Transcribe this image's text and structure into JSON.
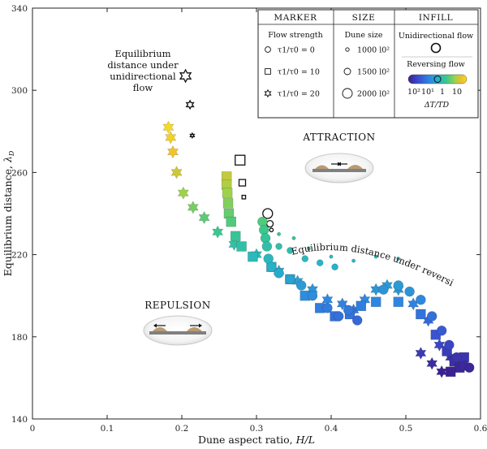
{
  "chart_data": {
    "type": "scatter",
    "xlabel": "Dune aspect ratio, H/L",
    "ylabel": "Equilibrium distance,  λ_D",
    "xlim": [
      0,
      0.6
    ],
    "ylim": [
      140,
      340
    ],
    "xticks": [
      "0",
      "0.1",
      "0.2",
      "0.3",
      "0.4",
      "0.5",
      "0.6"
    ],
    "yticks": [
      "140",
      "180",
      "220",
      "260",
      "300",
      "340"
    ],
    "grid": false,
    "legend_position": "top-right",
    "annotations": {
      "unidirectional": [
        "Equilibrium",
        "distance under",
        "unidirectional",
        "flow"
      ],
      "reversing": "Equilibrium distance under reversing flows",
      "attraction": "ATTRACTION",
      "repulsion": "REPULSION"
    },
    "legend": {
      "col_headers": [
        "MARKER",
        "SIZE",
        "INFILL"
      ],
      "marker_title": "Flow strength",
      "marker_items": [
        {
          "shape": "circle",
          "label": "τ1/τ0 = 0"
        },
        {
          "shape": "square",
          "label": "τ1/τ0 = 10"
        },
        {
          "shape": "star",
          "label": "τ1/τ0 = 20"
        }
      ],
      "size_title": "Dune size",
      "size_items": [
        {
          "label": "1000 l0²",
          "r": 2.2
        },
        {
          "label": "1500 l0²",
          "r": 4
        },
        {
          "label": "2000 l0²",
          "r": 6
        }
      ],
      "infill_uni": "Unidirectional flow",
      "infill_rev": "Reversing flow",
      "colorbar_ticks": [
        "10²",
        "10¹",
        "1",
        "10"
      ],
      "colorbar_label": "ΔT/TD",
      "colorbar_colors": [
        "#3b1e8f",
        "#3a4fd0",
        "#2f86e0",
        "#27b4c8",
        "#3cc88a",
        "#9dd24a",
        "#f0c02c",
        "#f5e020"
      ]
    },
    "series": [
      {
        "marker": "star",
        "infill": "unidirectional",
        "points": [
          [
            0.205,
            307,
            2000
          ],
          [
            0.211,
            293,
            1500
          ],
          [
            0.214,
            278,
            1000
          ]
        ]
      },
      {
        "marker": "square",
        "infill": "unidirectional",
        "points": [
          [
            0.278,
            266,
            2000
          ],
          [
            0.281,
            255,
            1500
          ],
          [
            0.283,
            248,
            1000
          ]
        ]
      },
      {
        "marker": "circle",
        "infill": "unidirectional",
        "points": [
          [
            0.315,
            240,
            2000
          ],
          [
            0.318,
            235,
            1500
          ],
          [
            0.32,
            232,
            1000
          ]
        ]
      },
      {
        "marker": "star",
        "infill": "reversing",
        "points": [
          [
            0.182,
            282,
            2000
          ],
          [
            0.185,
            277,
            2000
          ],
          [
            0.188,
            270,
            2000
          ],
          [
            0.193,
            260,
            2000
          ],
          [
            0.202,
            250,
            2000
          ],
          [
            0.215,
            243,
            2000
          ],
          [
            0.23,
            238,
            2000
          ],
          [
            0.248,
            231,
            2000
          ],
          [
            0.27,
            225,
            2000
          ],
          [
            0.3,
            220,
            2000
          ],
          [
            0.33,
            212,
            2000
          ],
          [
            0.355,
            207,
            2000
          ],
          [
            0.375,
            203,
            2000
          ],
          [
            0.395,
            198,
            2000
          ],
          [
            0.415,
            196,
            2000
          ],
          [
            0.43,
            193,
            2000
          ],
          [
            0.445,
            198,
            2000
          ],
          [
            0.46,
            203,
            2000
          ],
          [
            0.475,
            205,
            2000
          ],
          [
            0.49,
            203,
            2000
          ],
          [
            0.51,
            196,
            2000
          ],
          [
            0.53,
            188,
            2000
          ],
          [
            0.545,
            176,
            2000
          ],
          [
            0.56,
            170,
            2000
          ],
          [
            0.57,
            168,
            2000
          ],
          [
            0.52,
            172,
            2000
          ],
          [
            0.535,
            167,
            2000
          ],
          [
            0.548,
            163,
            2000
          ]
        ]
      },
      {
        "marker": "square",
        "infill": "reversing",
        "points": [
          [
            0.26,
            258,
            2000
          ],
          [
            0.26,
            254,
            2000
          ],
          [
            0.261,
            250,
            2000
          ],
          [
            0.262,
            245,
            2000
          ],
          [
            0.263,
            240,
            2000
          ],
          [
            0.266,
            236,
            2000
          ],
          [
            0.272,
            229,
            2000
          ],
          [
            0.28,
            224,
            2000
          ],
          [
            0.295,
            219,
            2000
          ],
          [
            0.32,
            214,
            2000
          ],
          [
            0.345,
            208,
            2000
          ],
          [
            0.365,
            200,
            2000
          ],
          [
            0.385,
            194,
            2000
          ],
          [
            0.405,
            190,
            2000
          ],
          [
            0.425,
            191,
            2000
          ],
          [
            0.44,
            195,
            2000
          ],
          [
            0.46,
            197,
            2000
          ],
          [
            0.49,
            197,
            2000
          ],
          [
            0.52,
            191,
            2000
          ],
          [
            0.54,
            181,
            2000
          ],
          [
            0.555,
            173,
            2000
          ],
          [
            0.565,
            168,
            2000
          ],
          [
            0.572,
            165,
            2000
          ],
          [
            0.56,
            163,
            2000
          ],
          [
            0.578,
            170,
            2000
          ]
        ]
      },
      {
        "marker": "circle",
        "infill": "reversing",
        "points": [
          [
            0.308,
            236,
            2000
          ],
          [
            0.31,
            232,
            2000
          ],
          [
            0.312,
            228,
            2000
          ],
          [
            0.314,
            224,
            2000
          ],
          [
            0.316,
            218,
            2000
          ],
          [
            0.32,
            214,
            2000
          ],
          [
            0.33,
            211,
            2000
          ],
          [
            0.345,
            208,
            2000
          ],
          [
            0.36,
            205,
            2000
          ],
          [
            0.375,
            200,
            2000
          ],
          [
            0.395,
            194,
            2000
          ],
          [
            0.41,
            190,
            2000
          ],
          [
            0.423,
            193,
            2000
          ],
          [
            0.435,
            188,
            2000
          ],
          [
            0.47,
            203,
            2000
          ],
          [
            0.49,
            205,
            2000
          ],
          [
            0.505,
            202,
            2000
          ],
          [
            0.52,
            198,
            2000
          ],
          [
            0.535,
            190,
            2000
          ],
          [
            0.548,
            183,
            2000
          ],
          [
            0.558,
            176,
            2000
          ],
          [
            0.568,
            170,
            2000
          ],
          [
            0.578,
            166,
            2000
          ],
          [
            0.585,
            165,
            2000
          ],
          [
            0.33,
            224,
            1500
          ],
          [
            0.345,
            222,
            1500
          ],
          [
            0.365,
            218,
            1500
          ],
          [
            0.385,
            216,
            1500
          ],
          [
            0.405,
            214,
            1500
          ],
          [
            0.33,
            230,
            1000
          ],
          [
            0.35,
            228,
            1000
          ],
          [
            0.37,
            223,
            1000
          ],
          [
            0.4,
            219,
            1000
          ],
          [
            0.43,
            217,
            1000
          ],
          [
            0.46,
            219,
            1000
          ],
          [
            0.49,
            218,
            1000
          ]
        ]
      }
    ],
    "series_colors": [
      0.95,
      0.6,
      0.45
    ]
  }
}
